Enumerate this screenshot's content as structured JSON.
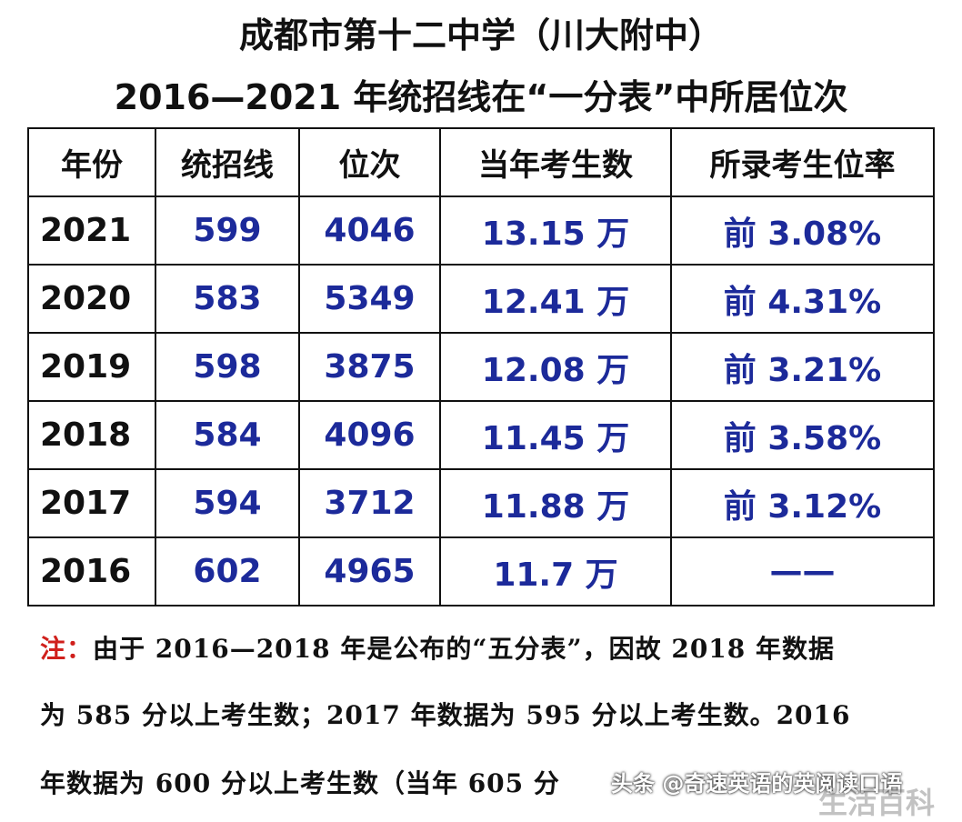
{
  "title": {
    "line1": "成都市第十二中学（川大附中）",
    "line2": "2016—2021 年统招线在“一分表”中所居位次"
  },
  "table": {
    "headers": [
      "年份",
      "统招线",
      "位次",
      "当年考生数",
      "所录考生位率"
    ],
    "rows": [
      {
        "year": "2021",
        "line": "599",
        "rank": "4046",
        "examinees": "13.15 万",
        "rate": "前 3.08%"
      },
      {
        "year": "2020",
        "line": "583",
        "rank": "5349",
        "examinees": "12.41 万",
        "rate": "前 4.31%"
      },
      {
        "year": "2019",
        "line": "598",
        "rank": "3875",
        "examinees": "12.08 万",
        "rate": "前 3.21%"
      },
      {
        "year": "2018",
        "line": "584",
        "rank": "4096",
        "examinees": "11.45 万",
        "rate": "前 3.58%"
      },
      {
        "year": "2017",
        "line": "594",
        "rank": "3712",
        "examinees": "11.88 万",
        "rate": "前 3.12%"
      },
      {
        "year": "2016",
        "line": "602",
        "rank": "4965",
        "examinees": "11.7 万",
        "rate": "——"
      }
    ]
  },
  "note": {
    "label": "注：",
    "line1": "由于 2016—2018 年是公布的“五分表”，因故 2018 年数据",
    "line2": "为 585 分以上考生数；2017 年数据为 595 分以上考生数。2016",
    "line3": "年数据为 600 分以上考生数（当年 605 分"
  },
  "watermark": {
    "source": "头条 @奇速英语的英阅读口语",
    "site": "生活百科"
  },
  "colors": {
    "value_text": "#1c2a9a",
    "note_label": "#d0201c",
    "text": "#111111"
  }
}
